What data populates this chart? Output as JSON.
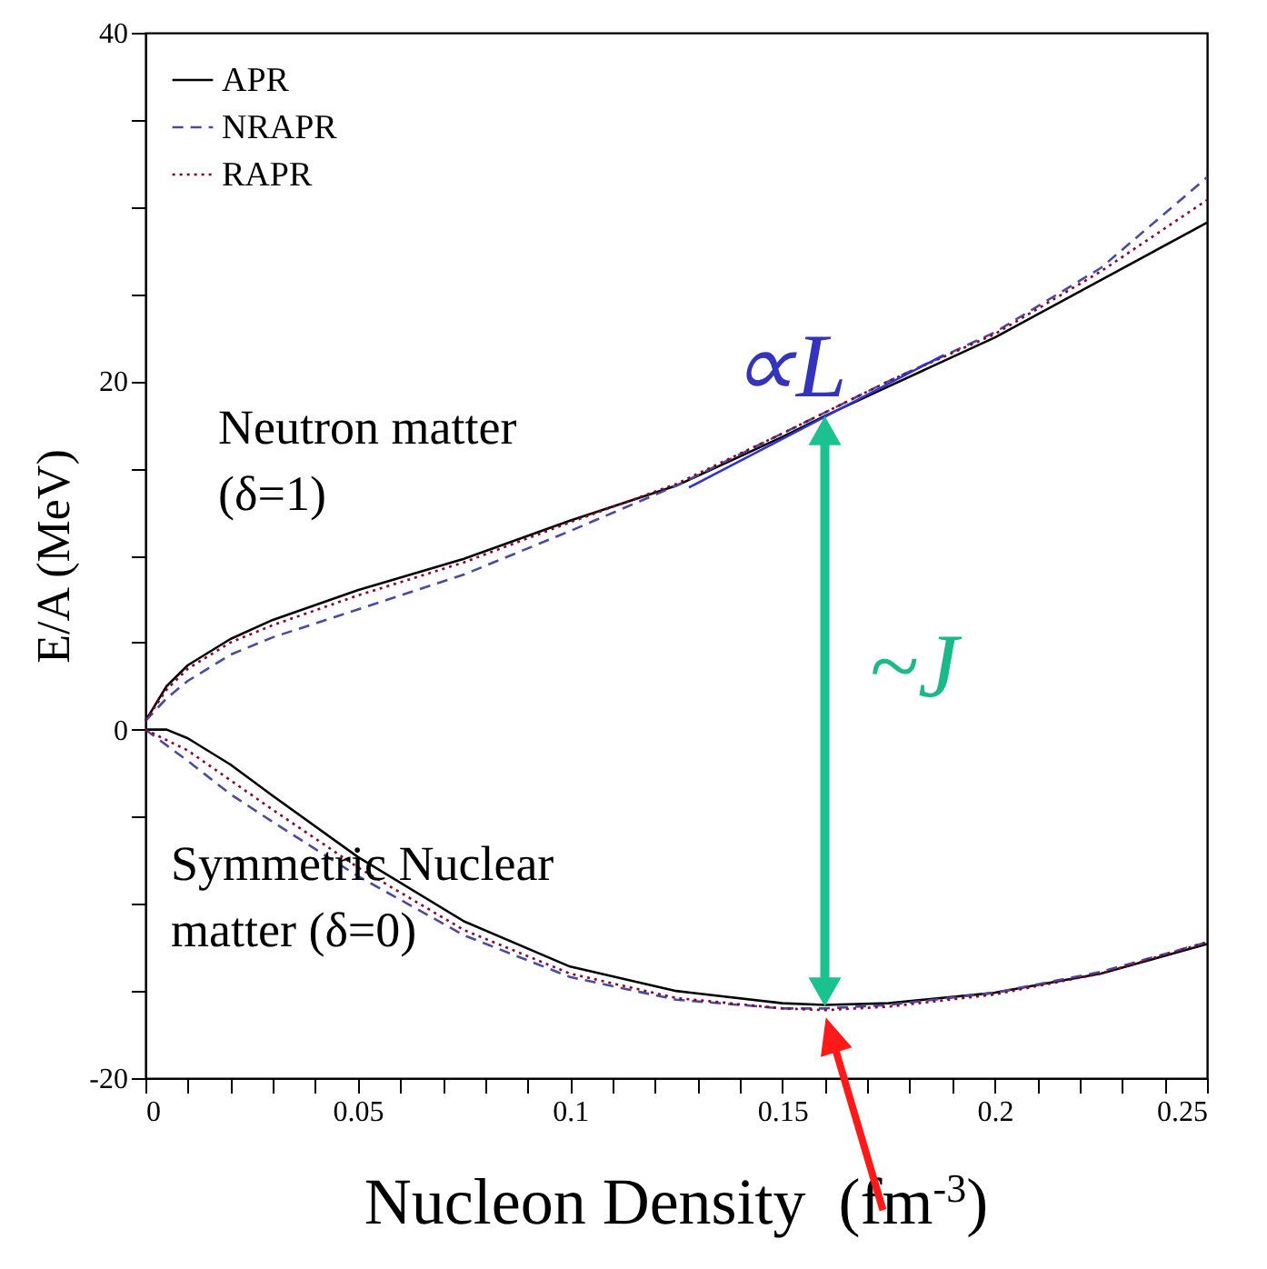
{
  "chart_data": {
    "type": "line",
    "xlabel": "Nucleon Density  (fm$^{-3}$)",
    "ylabel": "E/A (MeV)",
    "x": [
      0,
      0.005,
      0.01,
      0.02,
      0.03,
      0.05,
      0.075,
      0.1,
      0.125,
      0.15,
      0.16,
      0.175,
      0.2,
      0.225,
      0.25
    ],
    "series": [
      {
        "name": "APR",
        "color": "#000000",
        "line_style": "solid",
        "values": [
          0.5,
          2.5,
          3.7,
          5.2,
          6.3,
          8.0,
          9.8,
          12.0,
          14.0,
          16.8,
          18.0,
          19.7,
          22.5,
          25.8,
          29.1
        ]
      },
      {
        "name": "NRAPR",
        "color": "#4a4aa0",
        "line_style": "dashed",
        "values": [
          0.5,
          1.8,
          2.8,
          4.3,
          5.3,
          6.9,
          8.9,
          11.4,
          14.0,
          17.0,
          18.2,
          20.0,
          22.8,
          26.5,
          31.7
        ]
      },
      {
        "name": "RAPR",
        "color": "#8b0030",
        "line_style": "dotted",
        "values": [
          0.5,
          2.3,
          3.5,
          5.0,
          6.0,
          7.7,
          9.6,
          11.9,
          14.1,
          17.0,
          18.2,
          20.0,
          22.7,
          26.3,
          30.4
        ]
      },
      {
        "color": "#000000",
        "line_style": "solid",
        "values": [
          0,
          0,
          -0.5,
          -2.0,
          -3.8,
          -7.3,
          -11.0,
          -13.6,
          -15.0,
          -15.7,
          -15.8,
          -15.7,
          -15.1,
          -14.0,
          -12.3
        ]
      },
      {
        "color": "#4a4aa0",
        "line_style": "dashed",
        "values": [
          0,
          -0.9,
          -1.8,
          -3.7,
          -5.3,
          -8.4,
          -11.8,
          -14.2,
          -15.5,
          -16.0,
          -16.0,
          -15.8,
          -15.1,
          -13.9,
          -12.2
        ]
      },
      {
        "color": "#8b0030",
        "line_style": "dotted",
        "values": [
          0,
          -0.6,
          -1.2,
          -2.9,
          -4.6,
          -7.9,
          -11.5,
          -14.0,
          -15.4,
          -16.0,
          -16.1,
          -15.9,
          -15.2,
          -14.0,
          -12.2
        ]
      },
      {
        "color": "#3333cc",
        "line_style": "solid",
        "x": [
          0.128,
          0.188
        ],
        "values": [
          13.9,
          21.5
        ]
      }
    ],
    "annotations": [
      "Neutron matter (δ=1)",
      "Symmetric Nuclear matter (δ=0)",
      "∝L",
      "~J"
    ],
    "xlim": [
      0,
      0.25
    ],
    "xticks": [
      0,
      {
        "value": 0.01,
        "label": null
      },
      {
        "value": 0.02,
        "label": null
      },
      {
        "value": 0.03,
        "label": null
      },
      {
        "value": 0.04,
        "label": null
      },
      0.05,
      {
        "value": 0.06,
        "label": null
      },
      {
        "value": 0.07,
        "label": null
      },
      {
        "value": 0.08,
        "label": null
      },
      {
        "value": 0.09,
        "label": null
      },
      0.1,
      {
        "value": 0.11,
        "label": null
      },
      {
        "value": 0.12,
        "label": null
      },
      {
        "value": 0.13,
        "label": null
      },
      {
        "value": 0.14,
        "label": null
      },
      0.15,
      {
        "value": 0.16,
        "label": null
      },
      {
        "value": 0.17,
        "label": null
      },
      {
        "value": 0.18,
        "label": null
      },
      {
        "value": 0.19,
        "label": null
      },
      0.2,
      {
        "value": 0.21,
        "label": null
      },
      {
        "value": 0.22,
        "label": null
      },
      {
        "value": 0.23,
        "label": null
      },
      {
        "value": 0.24,
        "label": null
      },
      0.25
    ],
    "ylim": [
      -20,
      40
    ],
    "yticks": [
      -20,
      {
        "value": -15,
        "label": null
      },
      {
        "value": -10,
        "label": null
      },
      {
        "value": -5,
        "label": null
      },
      0,
      {
        "value": 5,
        "label": null
      },
      {
        "value": 10,
        "label": null
      },
      {
        "value": 15,
        "label": null
      },
      20,
      {
        "value": 25,
        "label": null
      },
      {
        "value": 30,
        "label": null
      },
      {
        "value": 35,
        "label": null
      },
      40
    ],
    "grid": false,
    "legend": "top left"
  }
}
